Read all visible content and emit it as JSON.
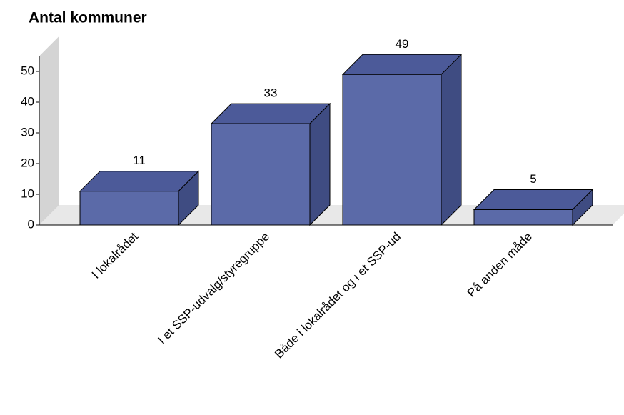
{
  "chart_data": {
    "type": "bar3d",
    "title": "Antal kommuner",
    "categories": [
      "I lokalrådet",
      "I et SSP-udvalg/styregruppe",
      "Både i lokalrådet og i et SSP-ud",
      "På anden måde"
    ],
    "values": [
      11,
      33,
      49,
      5
    ],
    "color": "#5b6aa8",
    "ylim": [
      0,
      55
    ],
    "yticks": [
      0,
      10,
      20,
      30,
      40,
      50
    ]
  }
}
